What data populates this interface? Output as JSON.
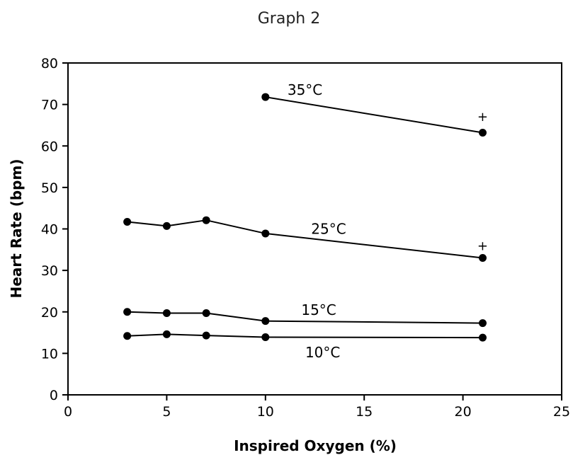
{
  "chart_data": {
    "type": "line",
    "title": "Graph 2",
    "xlabel": "Inspired Oxygen (%)",
    "ylabel": "Heart Rate (bpm)",
    "xlim": [
      0,
      25
    ],
    "ylim": [
      0,
      80
    ],
    "xticks": [
      0,
      5,
      10,
      15,
      20,
      25
    ],
    "yticks": [
      0,
      10,
      20,
      30,
      40,
      50,
      60,
      70,
      80
    ],
    "grid": false,
    "legend": "none",
    "series": [
      {
        "name": "35°C",
        "points": [
          [
            10,
            71.8
          ],
          [
            21,
            63.2
          ]
        ],
        "marker_note": "+"
      },
      {
        "name": "25°C",
        "points": [
          [
            3,
            41.7
          ],
          [
            5,
            40.7
          ],
          [
            7,
            42.1
          ],
          [
            10,
            38.9
          ],
          [
            21,
            33.0
          ]
        ],
        "marker_note": "+"
      },
      {
        "name": "15°C",
        "points": [
          [
            3,
            20.0
          ],
          [
            5,
            19.7
          ],
          [
            7,
            19.7
          ],
          [
            10,
            17.8
          ],
          [
            21,
            17.3
          ]
        ],
        "marker_note": ""
      },
      {
        "name": "10°C",
        "points": [
          [
            3,
            14.2
          ],
          [
            5,
            14.6
          ],
          [
            7,
            14.3
          ],
          [
            10,
            13.9
          ],
          [
            21,
            13.8
          ]
        ],
        "marker_note": ""
      }
    ],
    "series_label_anchor": [
      [
        12,
        73.5
      ],
      [
        13.2,
        40.0
      ],
      [
        12.7,
        20.5
      ],
      [
        12.9,
        10.2
      ]
    ],
    "marker_note_anchor": [
      [
        21,
        67.0
      ],
      [
        21,
        35.9
      ]
    ]
  },
  "colors": {
    "line": "#000000",
    "marker": "#000000",
    "axis": "#000000"
  }
}
